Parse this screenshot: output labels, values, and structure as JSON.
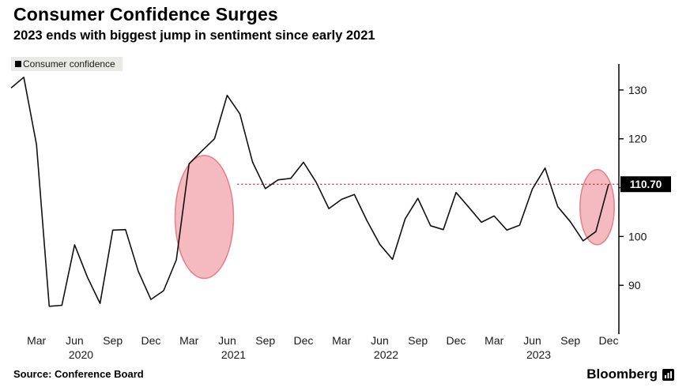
{
  "header": {
    "title": "Consumer Confidence Surges",
    "subtitle": "2023 ends with biggest jump in sentiment since early 2021"
  },
  "legend": {
    "label": "Consumer confidence"
  },
  "footer": {
    "source": "Source: Conference Board",
    "brand": "Bloomberg"
  },
  "colors": {
    "line": "#111111",
    "annotation_fill": "#ec7680",
    "annotation_stroke": "#d94f5c",
    "reference_line": "#cc1f1f",
    "badge_bg": "#000000",
    "badge_text": "#ffffff",
    "axis": "#000000"
  },
  "chart_data": {
    "type": "line",
    "title": "Consumer Confidence Surges",
    "subtitle": "2023 ends with biggest jump in sentiment since early 2021",
    "legend_position": "top-left",
    "x_monthly_start": "2020-01",
    "x_tick_months": [
      "Mar",
      "Jun",
      "Sep",
      "Dec"
    ],
    "x_years": [
      "2020",
      "2021",
      "2022",
      "2023"
    ],
    "ylim": [
      80,
      135
    ],
    "yticks": [
      90,
      100,
      110,
      120,
      130
    ],
    "grid": false,
    "series": [
      {
        "name": "Consumer confidence",
        "values": [
          130.4,
          132.6,
          118.8,
          85.7,
          85.9,
          98.3,
          91.7,
          86.3,
          101.3,
          101.4,
          92.9,
          87.1,
          88.9,
          95.2,
          114.9,
          117.5,
          120.0,
          128.9,
          125.1,
          115.2,
          109.8,
          111.6,
          111.9,
          115.2,
          111.1,
          105.7,
          107.6,
          108.6,
          103.2,
          98.4,
          95.3,
          103.6,
          107.8,
          102.2,
          101.4,
          109.0,
          106.0,
          102.9,
          104.2,
          101.3,
          102.3,
          109.7,
          114.0,
          106.1,
          103.0,
          99.1,
          101.0,
          110.7
        ]
      }
    ],
    "last_value_label": "110.70",
    "reference_line": {
      "value": 110.7,
      "start_index": 17.8,
      "style": "dotted"
    },
    "annotations": [
      {
        "type": "ellipse",
        "center_index": 15.2,
        "center_value": 104,
        "rx_months": 2.3,
        "ry_value": 12.6
      },
      {
        "type": "ellipse",
        "center_index": 46.1,
        "center_value": 106,
        "rx_months": 1.35,
        "ry_value": 7.7
      }
    ]
  }
}
